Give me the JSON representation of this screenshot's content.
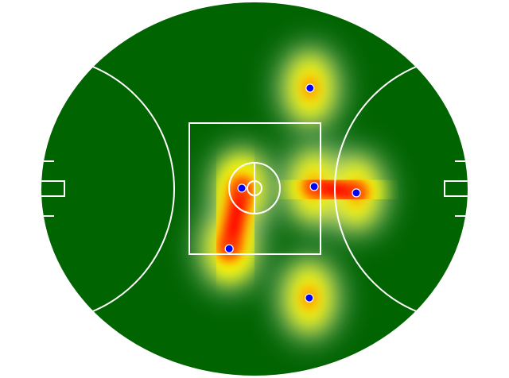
{
  "chart_data": {
    "type": "scatter",
    "x": [
      21.5,
      -4.9,
      23.1,
      39.4,
      -9.8,
      21.2
    ],
    "values": [
      36.5,
      0.3,
      0.9,
      -1.4,
      -21.6,
      -39.4
    ],
    "color": "#0000ff",
    "xlim": [
      -82.5,
      82.5
    ],
    "ylim": [
      -67.5,
      67.5
    ]
  }
}
